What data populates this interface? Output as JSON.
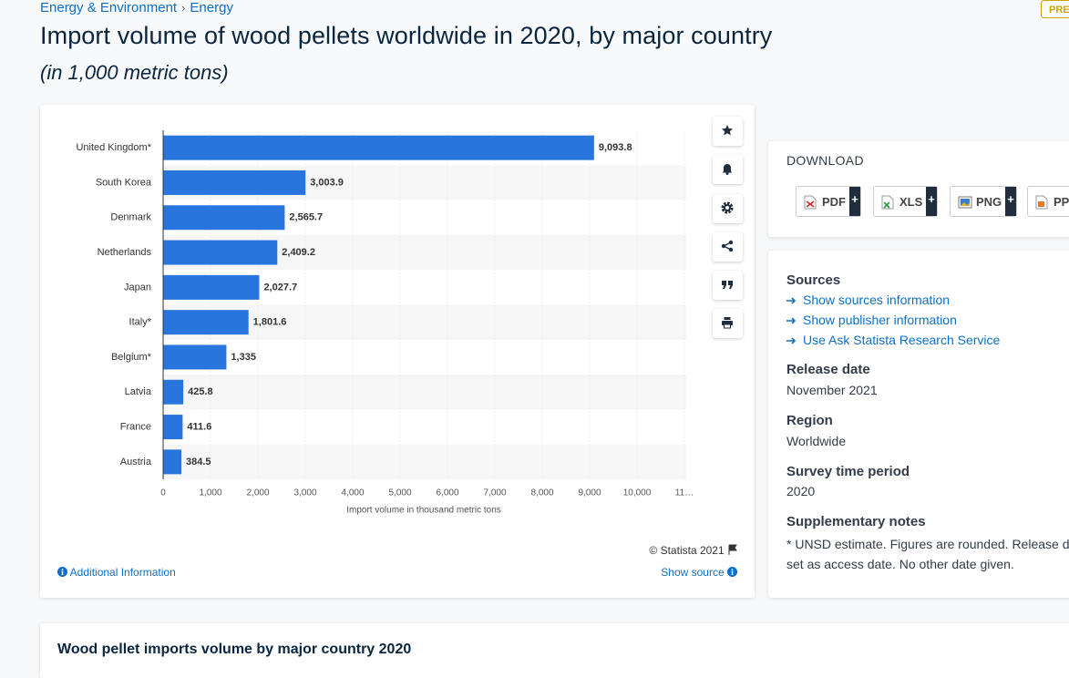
{
  "breadcrumb": [
    "Energy & Environment",
    "Energy"
  ],
  "badge": "PREMIUM",
  "title": "Import volume of wood pellets worldwide in 2020, by major country",
  "subtitle": "(in 1,000 metric tons)",
  "chart_data": {
    "type": "bar",
    "orientation": "horizontal",
    "categories": [
      "United Kingdom*",
      "South Korea",
      "Denmark",
      "Netherlands",
      "Japan",
      "Italy*",
      "Belgium*",
      "Latvia",
      "France",
      "Austria"
    ],
    "values": [
      9093.8,
      3003.9,
      2565.7,
      2409.2,
      2027.7,
      1801.6,
      1335,
      425.8,
      411.6,
      384.5
    ],
    "value_labels": [
      "9,093.8",
      "3,003.9",
      "2,565.7",
      "2,409.2",
      "2,027.7",
      "1,801.6",
      "1,335",
      "425.8",
      "411.6",
      "384.5"
    ],
    "color": "#2876dd",
    "xlim": [
      0,
      11000
    ],
    "xticks": [
      0,
      {
        "value": 1000,
        "label": "1,000"
      },
      {
        "value": 2000,
        "label": "2,000"
      },
      {
        "value": 3000,
        "label": "3,000"
      },
      {
        "value": 4000,
        "label": "4,000"
      },
      {
        "value": 5000,
        "label": "5,000"
      },
      {
        "value": 6000,
        "label": "6,000"
      },
      {
        "value": 7000,
        "label": "7,000"
      },
      {
        "value": 8000,
        "label": "8,000"
      },
      {
        "value": 9000,
        "label": "9,000"
      },
      {
        "value": 10000,
        "label": "10,000"
      },
      {
        "value": 11000,
        "label": "11…"
      }
    ],
    "x_label": "Import volume in thousand metric tons",
    "grid": true,
    "credit": "© Statista 2021",
    "additional_info": "Additional Information",
    "show_source": "Show source"
  },
  "download": {
    "title": "DOWNLOAD",
    "formats": [
      "PDF",
      "XLS",
      "PNG",
      "PPT"
    ],
    "add": "+"
  },
  "sources": {
    "heading": "Sources",
    "links": [
      "Show sources information",
      "Show publisher information",
      "Use Ask Statista Research Service"
    ]
  },
  "details": [
    {
      "label": "Release date",
      "value": "November 2021"
    },
    {
      "label": "Region",
      "value": "Worldwide"
    },
    {
      "label": "Survey time period",
      "value": "2020"
    },
    {
      "label": "Supplementary notes",
      "value": "* UNSD estimate. Figures are rounded. Release date set as access date. No other date given."
    }
  ],
  "related_title": "Wood pellet imports volume by major country 2020"
}
